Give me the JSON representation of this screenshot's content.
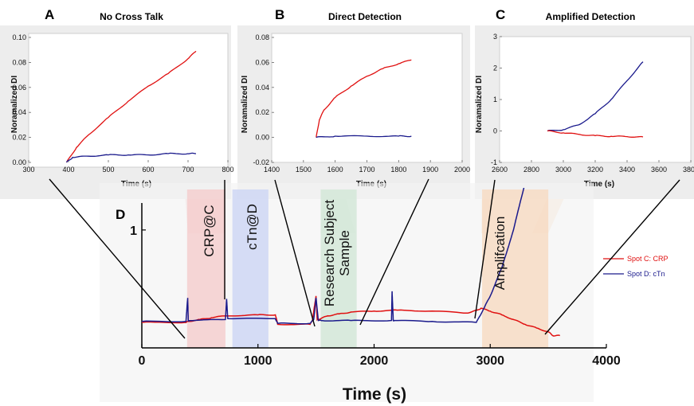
{
  "colors": {
    "red": "#e01010",
    "navy": "#1a1a8c",
    "pink_band": "#f4c9c9",
    "blue_band": "#c9d3f4",
    "green_band": "#cfe6d4",
    "orange_band": "#f7d8bd"
  },
  "chart_data": [
    {
      "panel": "A",
      "type": "line",
      "title": "No Cross Talk",
      "xlabel": "Time (s)",
      "ylabel": "Noramalized DI",
      "xlim": [
        300,
        800
      ],
      "ylim": [
        0,
        0.1
      ],
      "xticks": [
        "300",
        "400",
        "500",
        "600",
        "700",
        "800"
      ],
      "yticks": [
        "0.00",
        "0.02",
        "0.04",
        "0.06",
        "0.08",
        "0.10"
      ],
      "series": [
        {
          "color": "red",
          "x": [
            395,
            420,
            450,
            500,
            550,
            600,
            650,
            700,
            720
          ],
          "y": [
            0.0,
            0.012,
            0.022,
            0.036,
            0.049,
            0.061,
            0.071,
            0.083,
            0.089
          ]
        },
        {
          "color": "navy",
          "x": [
            395,
            410,
            450,
            500,
            550,
            600,
            650,
            700,
            720
          ],
          "y": [
            0.0,
            0.004,
            0.005,
            0.006,
            0.006,
            0.006,
            0.007,
            0.007,
            0.007
          ]
        }
      ]
    },
    {
      "panel": "B",
      "type": "line",
      "title": "Direct Detection",
      "xlabel": "Time (s)",
      "ylabel": "Noramalized DI",
      "xlim": [
        1400,
        2000
      ],
      "ylim": [
        -0.02,
        0.08
      ],
      "xticks": [
        "1400",
        "1500",
        "1600",
        "1700",
        "1800",
        "1900",
        "2000"
      ],
      "yticks": [
        "-0.02",
        "0.00",
        "0.02",
        "0.04",
        "0.06",
        "0.08"
      ],
      "series": [
        {
          "color": "red",
          "x": [
            1540,
            1550,
            1565,
            1600,
            1650,
            1700,
            1750,
            1800,
            1840
          ],
          "y": [
            0.0,
            0.014,
            0.022,
            0.032,
            0.041,
            0.049,
            0.055,
            0.059,
            0.062
          ]
        },
        {
          "color": "navy",
          "x": [
            1540,
            1600,
            1700,
            1800,
            1840
          ],
          "y": [
            0.0,
            0.001,
            0.001,
            0.001,
            0.001
          ]
        }
      ]
    },
    {
      "panel": "C",
      "type": "line",
      "title": "Amplified Detection",
      "xlabel": "Time (s)",
      "ylabel": "Noramalized DI",
      "xlim": [
        2600,
        3800
      ],
      "ylim": [
        -1,
        3
      ],
      "xticks": [
        "2600",
        "2800",
        "3000",
        "3200",
        "3400",
        "3600",
        "3800"
      ],
      "yticks": [
        "-1",
        "0",
        "1",
        "2",
        "3"
      ],
      "series": [
        {
          "color": "navy",
          "x": [
            2900,
            3000,
            3100,
            3200,
            3300,
            3400,
            3500
          ],
          "y": [
            0.0,
            0.04,
            0.2,
            0.55,
            1.0,
            1.6,
            2.2
          ]
        },
        {
          "color": "red",
          "x": [
            2900,
            3000,
            3100,
            3200,
            3300,
            3400,
            3500
          ],
          "y": [
            0.0,
            -0.06,
            -0.11,
            -0.15,
            -0.17,
            -0.18,
            -0.19
          ]
        }
      ]
    },
    {
      "panel": "D",
      "type": "line",
      "xlabel": "Time (s)",
      "xlim": [
        0,
        4000
      ],
      "ylim": [
        -0.25,
        1.75
      ],
      "xticks": [
        "0",
        "1000",
        "2000",
        "3000",
        "4000"
      ],
      "yticks": [
        "1"
      ],
      "phases": [
        {
          "label": "CRP@C",
          "x_range": [
            390,
            720
          ],
          "color": "pink_band"
        },
        {
          "label": "cTn@D",
          "x_range": [
            780,
            1090
          ],
          "color": "blue_band"
        },
        {
          "label": "Research Subject Sample",
          "x_range": [
            1540,
            1850
          ],
          "color": "green_band"
        },
        {
          "label": "Amplifcation",
          "x_range": [
            2930,
            3500
          ],
          "color": "orange_band"
        }
      ],
      "legend": {
        "position": "right",
        "entries": [
          "Spot C: CRP",
          "Spot D: cTn"
        ]
      },
      "series": [
        {
          "name": "Spot C: CRP",
          "color": "red",
          "x": [
            0,
            380,
            395,
            500,
            600,
            720,
            1000,
            1150,
            1170,
            1450,
            1470,
            1500,
            1510,
            1540,
            1600,
            1700,
            1800,
            2000,
            2200,
            2500,
            2800,
            2890,
            2920,
            3000,
            3100,
            3200,
            3300,
            3400,
            3500,
            3540,
            3600
          ],
          "y": [
            0.02,
            0.02,
            0.03,
            0.05,
            0.07,
            0.09,
            0.1,
            0.1,
            0.0,
            0.0,
            0.05,
            0.3,
            0.05,
            0.06,
            0.09,
            0.11,
            0.13,
            0.14,
            0.15,
            0.14,
            0.12,
            0.15,
            0.17,
            0.14,
            0.1,
            0.05,
            0.0,
            -0.04,
            -0.08,
            -0.12,
            -0.12
          ]
        },
        {
          "name": "Spot D: cTn",
          "color": "navy",
          "x": [
            0,
            380,
            395,
            400,
            405,
            720,
            730,
            740,
            1150,
            1170,
            1450,
            1480,
            1500,
            1520,
            1550,
            1800,
            2150,
            2155,
            2165,
            2170,
            2500,
            2880,
            2950,
            3000,
            3100,
            3200,
            3300,
            3350,
            3400
          ],
          "y": [
            0.03,
            0.03,
            0.28,
            0.03,
            0.04,
            0.05,
            0.27,
            0.06,
            0.06,
            0.01,
            0.01,
            0.05,
            0.28,
            0.04,
            0.04,
            0.04,
            0.04,
            0.35,
            0.04,
            0.04,
            0.03,
            0.02,
            0.18,
            0.3,
            0.6,
            1.0,
            1.5,
            1.75,
            1.75
          ]
        }
      ]
    }
  ]
}
